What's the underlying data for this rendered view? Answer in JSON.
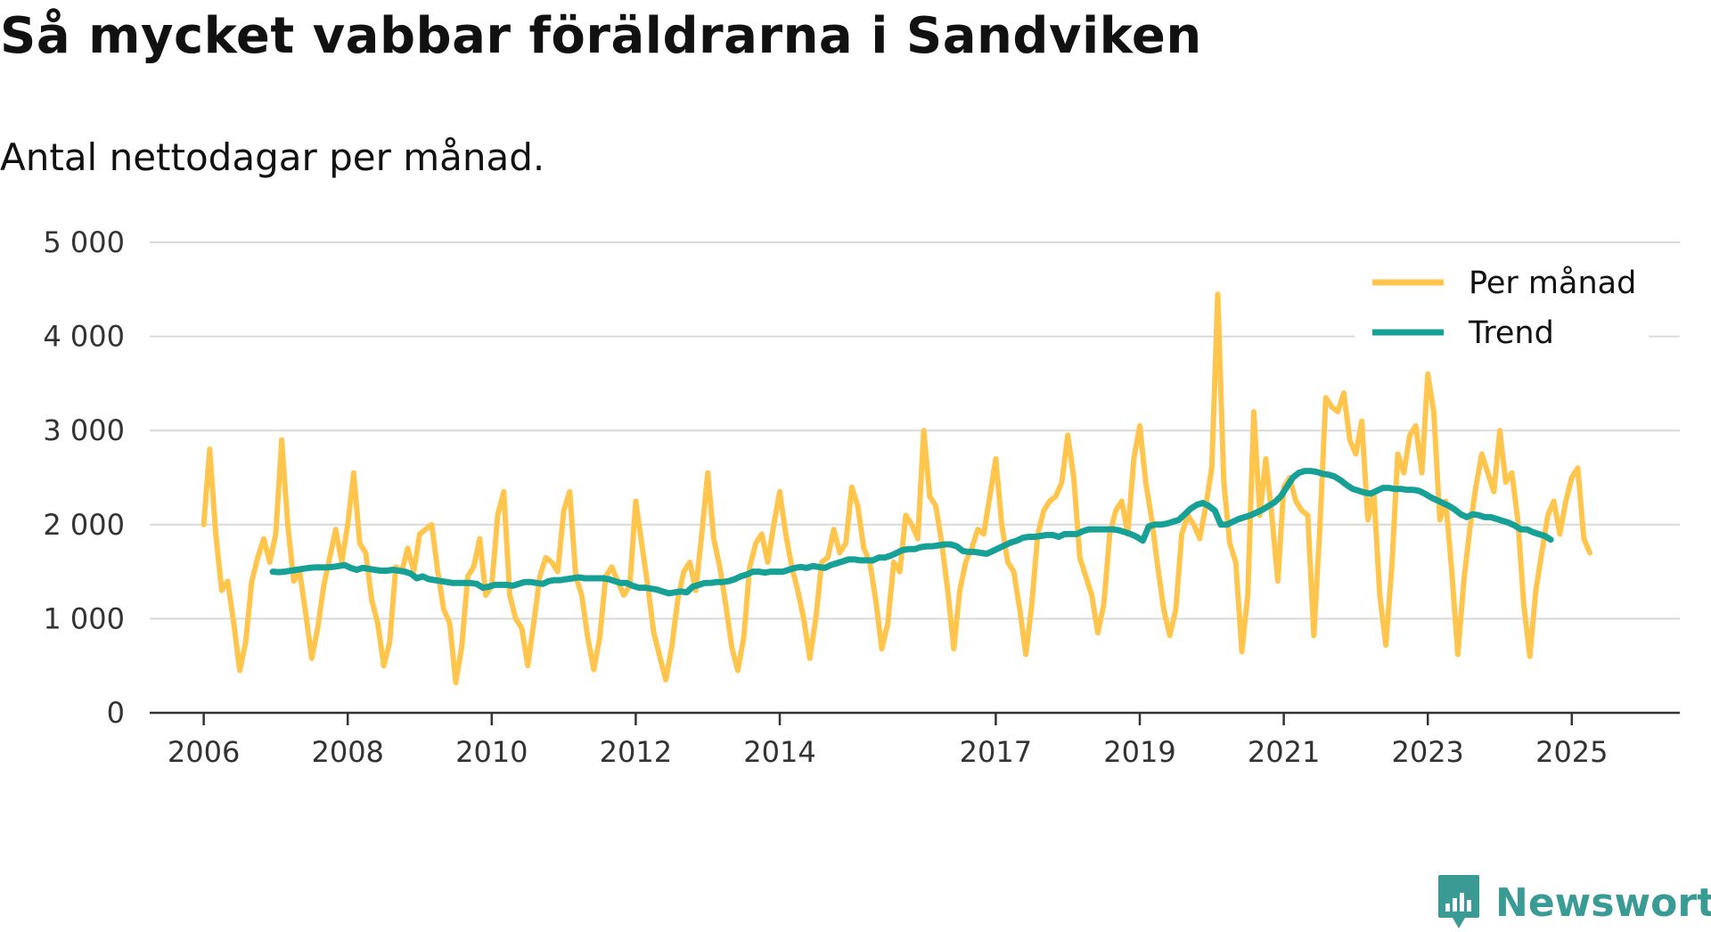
{
  "chart_data": {
    "type": "line",
    "title": "Så mycket vabbar föräldrarna i Sandviken",
    "subtitle": "Antal nettodagar per månad.",
    "xlabel": "",
    "ylabel": "",
    "ylim": [
      0,
      5000
    ],
    "y_ticks": [
      0,
      1000,
      2000,
      3000,
      4000,
      5000
    ],
    "y_tick_labels": [
      "0",
      "1 000",
      "2 000",
      "3 000",
      "4 000",
      "5 000"
    ],
    "x_range": [
      2005.25,
      2026.5
    ],
    "x_ticks": [
      2006,
      2008,
      2010,
      2012,
      2014,
      2017,
      2019,
      2021,
      2023,
      2025
    ],
    "x_tick_labels": [
      "2006",
      "2008",
      "2010",
      "2012",
      "2014",
      "2017",
      "2019",
      "2021",
      "2023",
      "2025"
    ],
    "grid": true,
    "legend_position": "top-right",
    "series": [
      {
        "name": "Per månad",
        "color": "#ffc54d",
        "x_start": 2006.0,
        "step": 0.0833333,
        "values": [
          2000,
          2800,
          1900,
          1300,
          1400,
          950,
          450,
          750,
          1400,
          1650,
          1850,
          1600,
          1900,
          2900,
          2000,
          1400,
          1500,
          1050,
          580,
          900,
          1350,
          1650,
          1950,
          1600,
          2000,
          2550,
          1800,
          1700,
          1200,
          950,
          500,
          750,
          1550,
          1500,
          1750,
          1500,
          1900,
          1950,
          2000,
          1500,
          1100,
          950,
          320,
          700,
          1450,
          1550,
          1850,
          1250,
          1350,
          2100,
          2350,
          1250,
          1000,
          900,
          500,
          950,
          1450,
          1650,
          1600,
          1500,
          2150,
          2350,
          1450,
          1250,
          800,
          460,
          800,
          1450,
          1550,
          1400,
          1250,
          1350,
          2250,
          1800,
          1350,
          850,
          600,
          350,
          700,
          1200,
          1500,
          1600,
          1300,
          1900,
          2550,
          1850,
          1550,
          1150,
          700,
          450,
          800,
          1550,
          1800,
          1900,
          1600,
          2000,
          2350,
          1900,
          1550,
          1300,
          1000,
          580,
          1000,
          1600,
          1650,
          1950,
          1700,
          1800,
          2400,
          2200,
          1750,
          1600,
          1200,
          680,
          950,
          1600,
          1500,
          2100,
          2000,
          1850,
          3000,
          2300,
          2200,
          1800,
          1300,
          680,
          1300,
          1600,
          1750,
          1950,
          1900,
          2300,
          2700,
          2000,
          1600,
          1500,
          1100,
          620,
          1150,
          1900,
          2150,
          2250,
          2300,
          2450,
          2950,
          2500,
          1650,
          1450,
          1250,
          850,
          1150,
          1900,
          2150,
          2250,
          1900,
          2700,
          3050,
          2450,
          2050,
          1550,
          1100,
          820,
          1100,
          1900,
          2100,
          2000,
          1850,
          2200,
          2600,
          4450,
          2450,
          1800,
          1600,
          650,
          1250,
          3200,
          2100,
          2700,
          2100,
          1400,
          2400,
          2500,
          2250,
          2150,
          2100,
          820,
          1950,
          3350,
          3250,
          3200,
          3400,
          2900,
          2750,
          3100,
          2050,
          2350,
          1250,
          720,
          1550,
          2750,
          2550,
          2950,
          3050,
          2550,
          3600,
          3200,
          2050,
          2250,
          1500,
          620,
          1400,
          1950,
          2400,
          2750,
          2550,
          2350,
          3000,
          2450,
          2550,
          2050,
          1150,
          600,
          1300,
          1700,
          2100,
          2250,
          1900,
          2250,
          2500,
          2600,
          1850,
          1700
        ]
      },
      {
        "name": "Trend",
        "color": "#16a096",
        "x_start": 2006.9583,
        "step": 0.0833333,
        "values": [
          1500,
          1495,
          1500,
          1510,
          1520,
          1530,
          1540,
          1545,
          1545,
          1545,
          1550,
          1560,
          1570,
          1540,
          1520,
          1540,
          1530,
          1520,
          1510,
          1510,
          1520,
          1510,
          1500,
          1480,
          1430,
          1450,
          1420,
          1410,
          1400,
          1390,
          1380,
          1380,
          1380,
          1380,
          1370,
          1330,
          1340,
          1360,
          1360,
          1360,
          1350,
          1370,
          1390,
          1390,
          1380,
          1370,
          1400,
          1410,
          1410,
          1420,
          1430,
          1440,
          1430,
          1430,
          1430,
          1430,
          1420,
          1400,
          1380,
          1380,
          1350,
          1330,
          1330,
          1320,
          1310,
          1290,
          1270,
          1280,
          1290,
          1280,
          1340,
          1360,
          1380,
          1380,
          1390,
          1390,
          1400,
          1420,
          1450,
          1470,
          1500,
          1500,
          1490,
          1500,
          1500,
          1500,
          1520,
          1540,
          1550,
          1540,
          1560,
          1550,
          1540,
          1570,
          1590,
          1610,
          1630,
          1630,
          1620,
          1620,
          1620,
          1650,
          1650,
          1670,
          1700,
          1730,
          1740,
          1740,
          1760,
          1770,
          1770,
          1780,
          1790,
          1790,
          1770,
          1720,
          1710,
          1710,
          1700,
          1690,
          1720,
          1750,
          1780,
          1810,
          1830,
          1860,
          1870,
          1870,
          1880,
          1890,
          1890,
          1870,
          1900,
          1900,
          1900,
          1930,
          1950,
          1950,
          1950,
          1950,
          1950,
          1940,
          1920,
          1900,
          1870,
          1830,
          1980,
          2000,
          2000,
          2010,
          2030,
          2050,
          2110,
          2170,
          2210,
          2230,
          2200,
          2150,
          2000,
          2000,
          2030,
          2060,
          2080,
          2100,
          2130,
          2160,
          2200,
          2240,
          2300,
          2400,
          2500,
          2550,
          2570,
          2570,
          2560,
          2540,
          2530,
          2510,
          2470,
          2420,
          2380,
          2360,
          2340,
          2330,
          2360,
          2390,
          2390,
          2380,
          2380,
          2370,
          2370,
          2360,
          2330,
          2290,
          2260,
          2230,
          2200,
          2160,
          2110,
          2080,
          2110,
          2100,
          2080,
          2080,
          2060,
          2040,
          2020,
          1990,
          1950,
          1950,
          1920,
          1900,
          1880,
          1840
        ]
      }
    ]
  },
  "legend": {
    "per_month_label": "Per månad",
    "trend_label": "Trend"
  },
  "brand": {
    "name": "Newsworthy",
    "color": "#3a9b94"
  }
}
